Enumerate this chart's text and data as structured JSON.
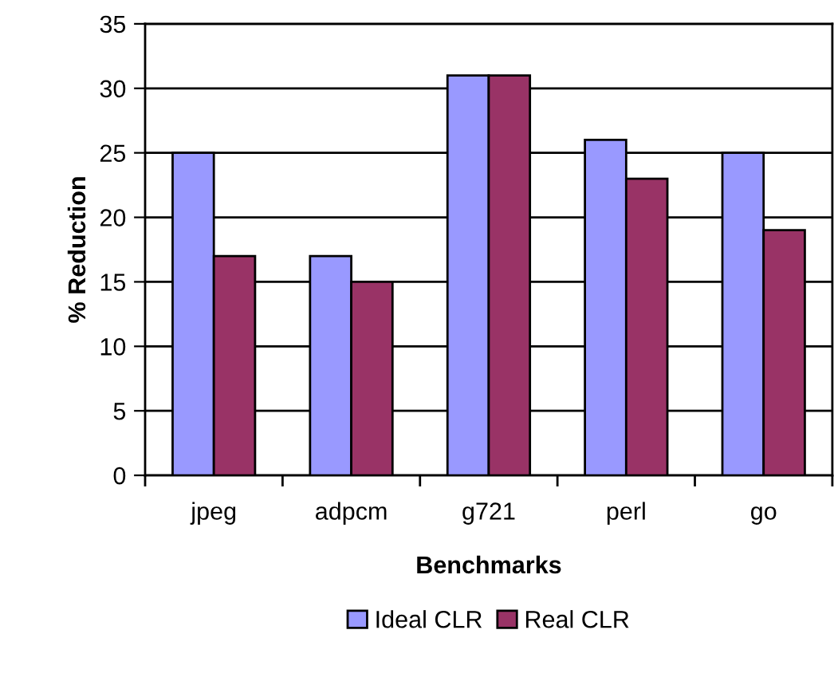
{
  "chart_data": {
    "type": "bar",
    "xlabel": "Benchmarks",
    "ylabel": "% Reduction",
    "categories": [
      "jpeg",
      "adpcm",
      "g721",
      "perl",
      "go"
    ],
    "series": [
      {
        "name": "Ideal CLR",
        "color": "#9999ff",
        "values": [
          25,
          17,
          31,
          26,
          25
        ]
      },
      {
        "name": "Real CLR",
        "color": "#993366",
        "values": [
          17,
          15,
          31,
          23,
          19
        ]
      }
    ],
    "ylim": [
      0,
      35
    ],
    "yticks": [
      0,
      5,
      10,
      15,
      20,
      25,
      30,
      35
    ],
    "grid": "y",
    "legend": "bottom"
  }
}
